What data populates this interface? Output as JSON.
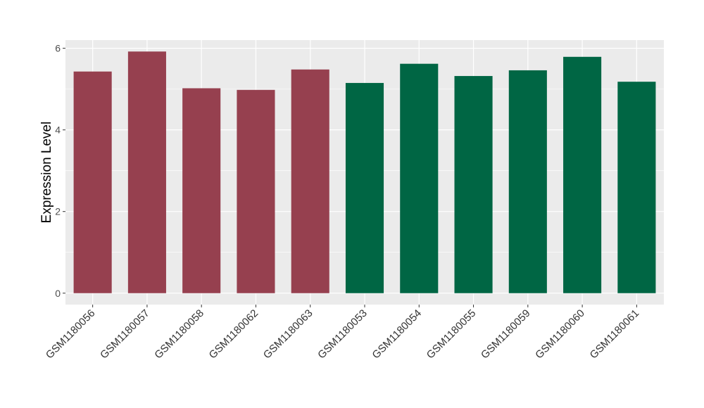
{
  "chart_data": {
    "type": "bar",
    "title": "",
    "xlabel": "",
    "ylabel": "Expression Level",
    "ylim": [
      -0.28,
      6.2
    ],
    "yticks": [
      0,
      2,
      4,
      6
    ],
    "grid": true,
    "legend": "none",
    "categories": [
      "GSM1180056",
      "GSM1180057",
      "GSM1180058",
      "GSM1180062",
      "GSM1180063",
      "GSM1180053",
      "GSM1180054",
      "GSM1180055",
      "GSM1180059",
      "GSM1180060",
      "GSM1180061"
    ],
    "values": [
      5.43,
      5.92,
      5.02,
      4.98,
      5.48,
      5.15,
      5.62,
      5.32,
      5.46,
      5.79,
      5.18
    ],
    "bar_colors": [
      "#96404f",
      "#96404f",
      "#96404f",
      "#96404f",
      "#96404f",
      "#006644",
      "#006644",
      "#006644",
      "#006644",
      "#006644",
      "#006644"
    ],
    "panel_background": "#ebebeb",
    "grid_color": "#ffffff"
  }
}
